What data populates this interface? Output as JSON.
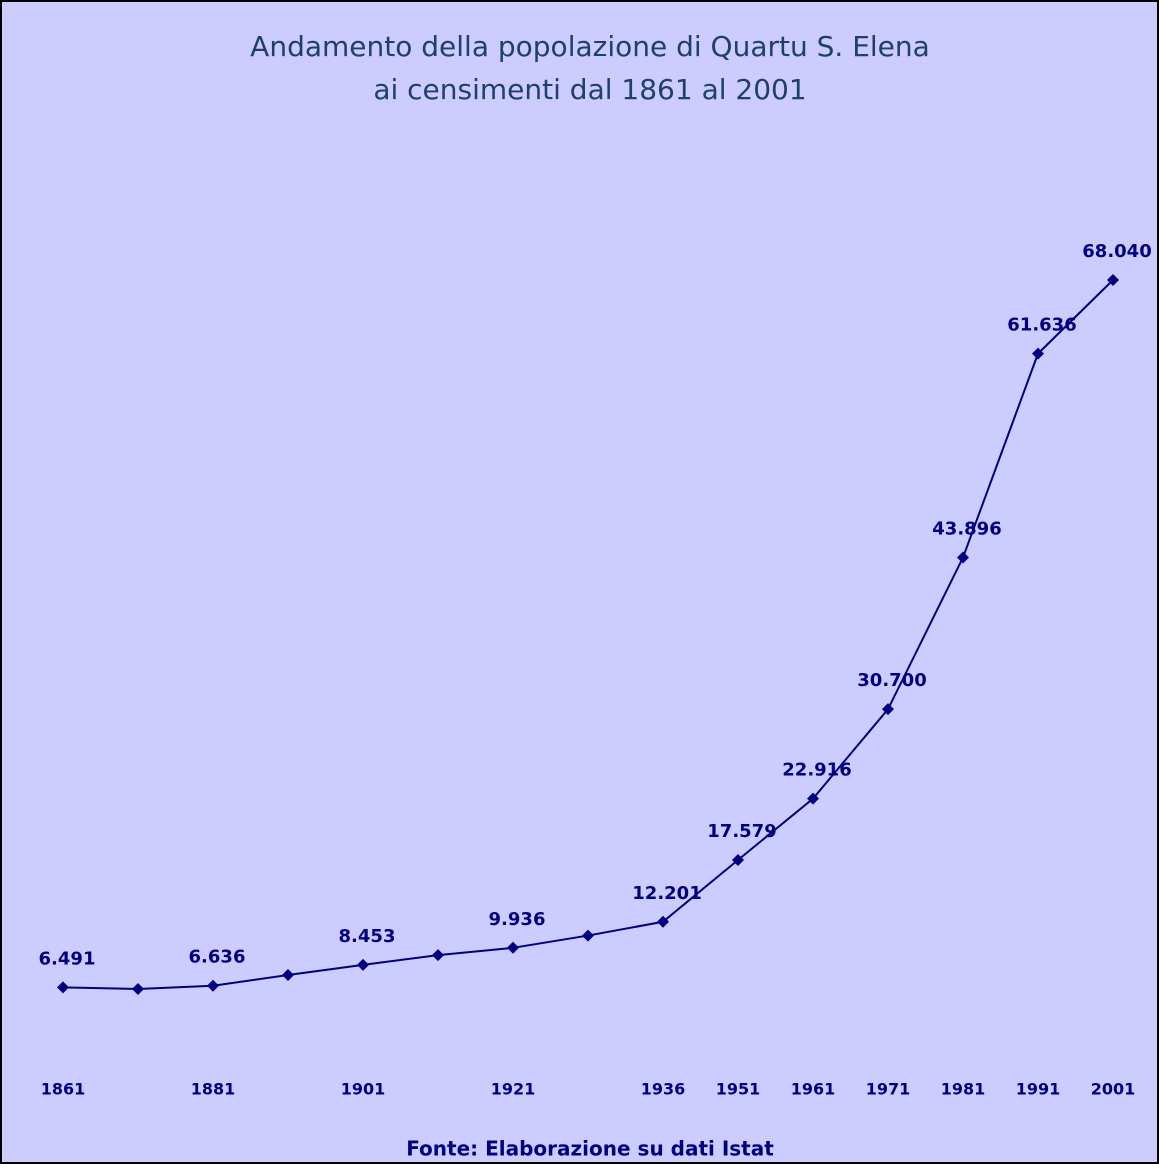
{
  "chart_data": {
    "type": "line",
    "title": "Andamento della popolazione di Quartu S. Elena",
    "subtitle": "ai censimenti dal 1861 al 2001",
    "source": "Fonte: Elaborazione su dati Istat",
    "categories": [
      "1861",
      null,
      "1881",
      null,
      "1901",
      null,
      "1921",
      null,
      "1936",
      "1951",
      "1961",
      "1971",
      "1981",
      "1991",
      "2001"
    ],
    "series": [
      {
        "color": "#000080",
        "values": [
          6491,
          6350,
          6636,
          7570,
          8453,
          9300,
          9936,
          11000,
          12201,
          17579,
          22916,
          30700,
          43896,
          61636,
          68040
        ],
        "value_labels": [
          "6.491",
          null,
          "6.636",
          null,
          "8.453",
          null,
          "9.936",
          null,
          "12.201",
          "17.579",
          "22.916",
          "30.700",
          "43.896",
          "61.636",
          "68.040"
        ]
      }
    ],
    "grid": false
  }
}
